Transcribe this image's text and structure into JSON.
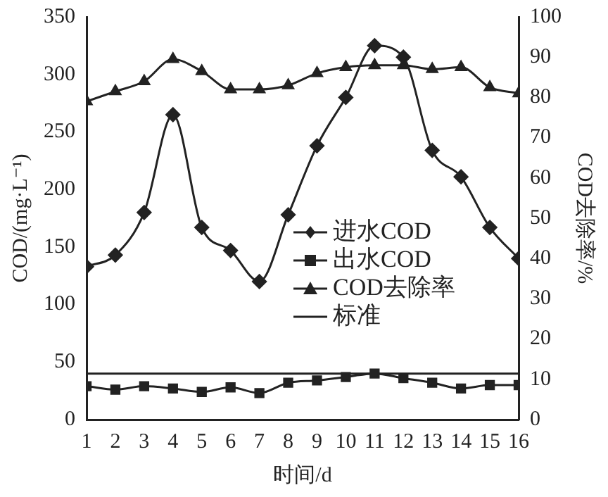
{
  "chart_data": {
    "type": "line",
    "xlabel": "时间/d",
    "ylabel": "COD/(mg·L⁻¹)",
    "y2label": "COD去除率/%",
    "x": [
      1,
      2,
      3,
      4,
      5,
      6,
      7,
      8,
      9,
      10,
      11,
      12,
      13,
      14,
      15,
      16
    ],
    "xlim": [
      1,
      16
    ],
    "xticks": [
      1,
      2,
      3,
      4,
      5,
      6,
      7,
      8,
      9,
      10,
      11,
      12,
      13,
      14,
      15,
      16
    ],
    "ylim": [
      0,
      350
    ],
    "yticks": [
      0,
      50,
      100,
      150,
      200,
      250,
      300,
      350
    ],
    "y2lim": [
      0,
      100
    ],
    "y2ticks": [
      0,
      10,
      20,
      30,
      40,
      50,
      60,
      70,
      80,
      90,
      100
    ],
    "grid": false,
    "legend": "right",
    "series": [
      {
        "name": "进水COD",
        "color": "#222222",
        "marker": "diamond",
        "values": [
          133,
          143,
          180,
          265,
          167,
          147,
          120,
          178,
          238,
          280,
          325,
          315,
          234,
          211,
          167,
          140
        ]
      },
      {
        "name": "出水COD",
        "color": "#222222",
        "marker": "square",
        "values": [
          29,
          26,
          29,
          27,
          24,
          28,
          23,
          32,
          34,
          37,
          40,
          36,
          32,
          27,
          30,
          30
        ]
      },
      {
        "name": "COD去除率",
        "color": "#222222",
        "marker": "triangle",
        "axis": "y2",
        "values": [
          79,
          81.5,
          84,
          89.5,
          86.5,
          82,
          82,
          83,
          86,
          87.5,
          88,
          88,
          87,
          87.5,
          82.5,
          81
        ]
      },
      {
        "name": "标准",
        "color": "#222222",
        "marker": "none",
        "values": [
          40,
          40,
          40,
          40,
          40,
          40,
          40,
          40,
          40,
          40,
          40,
          40,
          40,
          40,
          40,
          40
        ]
      }
    ]
  }
}
